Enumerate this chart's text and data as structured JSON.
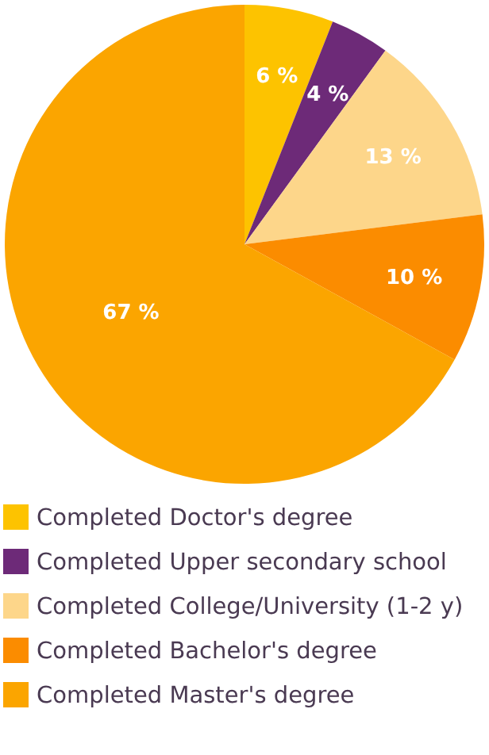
{
  "chart_data": {
    "type": "pie",
    "categories": [
      "Completed Doctor's degree",
      "Completed Upper secondary school",
      "Completed College/University (1-2 y)",
      "Completed Bachelor's degree",
      "Completed Master's degree"
    ],
    "values": [
      6,
      4,
      13,
      10,
      67
    ],
    "colors": [
      "#fdc300",
      "#6d2a78",
      "#fdd68a",
      "#fb8c00",
      "#fba500"
    ],
    "value_labels": [
      "6 %",
      "4 %",
      "13 %",
      "10 %",
      "67 %"
    ],
    "legend": "bottom"
  }
}
